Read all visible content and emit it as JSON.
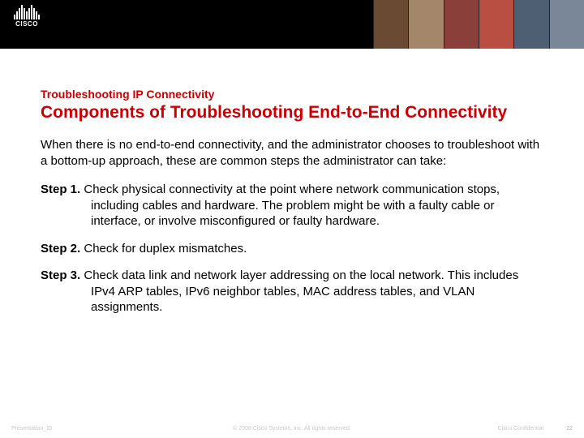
{
  "header": {
    "logo_text": "CISCO",
    "logo_bar_heights": [
      6,
      10,
      14,
      18,
      14,
      10,
      14,
      18,
      14,
      10,
      6
    ],
    "photo_strip_colors": [
      "#6b4a34",
      "#a4876a",
      "#8a3f3a",
      "#b94f42",
      "#4f5f73",
      "#7a8799"
    ]
  },
  "content": {
    "eyebrow": "Troubleshooting IP Connectivity",
    "title": "Components of Troubleshooting End-to-End Connectivity",
    "intro": "When there is no end-to-end connectivity, and the administrator chooses to troubleshoot with a bottom-up approach, these are common steps the administrator can take:",
    "step1_label": "Step 1.",
    "step1_text": " Check physical connectivity at the point where network communication stops, including cables and hardware. The problem might be with a faulty cable or interface, or involve misconfigured or faulty hardware.",
    "step2_label": "Step 2.",
    "step2_text": " Check for duplex mismatches.",
    "step3_label": "Step 3.",
    "step3_text": " Check data link and network layer addressing on the local network. This includes IPv4 ARP tables, IPv6 neighbor tables, MAC address tables, and VLAN assignments."
  },
  "footer": {
    "left": "Presentation_ID",
    "center": "© 2008 Cisco Systems, Inc. All rights reserved.",
    "confidential": "Cisco Confidential",
    "page": "22"
  },
  "colors": {
    "accent": "#cc0000",
    "text": "#000000",
    "footer_text": "#c9c9c9",
    "page_number": "#d6b24a",
    "header_bg": "#000000",
    "page_bg": "#ffffff"
  }
}
